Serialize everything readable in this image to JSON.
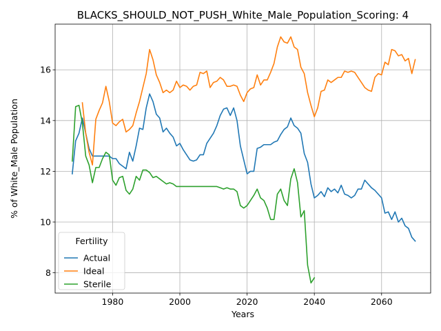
{
  "chart_data": {
    "type": "line",
    "title": "BLACKS_SHOULD_NOT_PUSH_White_Male_Population_Scoring: 4",
    "xlabel": "Years",
    "ylabel": "% of White_Male Population",
    "xlim": [
      1962.9,
      2074.6
    ],
    "ylim": [
      7.2,
      17.8
    ],
    "xticks": [
      1980,
      2000,
      2020,
      2040,
      2060
    ],
    "yticks": [
      8,
      10,
      12,
      14,
      16
    ],
    "grid": true,
    "legend": {
      "title": "Fertility",
      "position": "lower-left"
    },
    "colors": {
      "Actual": "#1f77b4",
      "Ideal": "#ff7f0e",
      "Sterile": "#2ca02c"
    },
    "series": [
      {
        "name": "Actual",
        "x": [
          1968,
          1969,
          1970,
          1971,
          1972,
          1973,
          1974,
          1975,
          1976,
          1977,
          1978,
          1979,
          1980,
          1981,
          1982,
          1983,
          1984,
          1985,
          1986,
          1987,
          1988,
          1989,
          1990,
          1991,
          1992,
          1993,
          1994,
          1995,
          1996,
          1997,
          1998,
          1999,
          2000,
          2001,
          2002,
          2003,
          2004,
          2005,
          2006,
          2007,
          2008,
          2009,
          2010,
          2011,
          2012,
          2013,
          2014,
          2015,
          2016,
          2017,
          2018,
          2019,
          2020,
          2021,
          2022,
          2023,
          2024,
          2025,
          2026,
          2027,
          2028,
          2029,
          2030,
          2031,
          2032,
          2033,
          2034,
          2035,
          2036,
          2037,
          2038,
          2039,
          2040,
          2041,
          2042,
          2043,
          2044,
          2045,
          2046,
          2047,
          2048,
          2049,
          2050,
          2051,
          2052,
          2053,
          2054,
          2055,
          2056,
          2057,
          2058,
          2059,
          2060,
          2061,
          2062,
          2063,
          2064,
          2065,
          2066,
          2067,
          2068,
          2069,
          2070
        ],
        "y": [
          11.9,
          13.2,
          13.5,
          14.1,
          13.5,
          12.9,
          12.6,
          12.6,
          12.6,
          12.6,
          12.6,
          12.6,
          12.5,
          12.5,
          12.3,
          12.2,
          12.1,
          12.75,
          12.4,
          13.0,
          13.7,
          13.65,
          14.5,
          15.05,
          14.75,
          14.25,
          14.1,
          13.55,
          13.7,
          13.5,
          13.35,
          13.0,
          13.1,
          12.85,
          12.65,
          12.45,
          12.4,
          12.45,
          12.65,
          12.65,
          13.1,
          13.3,
          13.5,
          13.8,
          14.2,
          14.45,
          14.5,
          14.2,
          14.5,
          14.0,
          13.0,
          12.45,
          11.9,
          12.0,
          12.0,
          12.9,
          12.95,
          13.05,
          13.05,
          13.05,
          13.15,
          13.2,
          13.45,
          13.65,
          13.75,
          14.1,
          13.8,
          13.7,
          13.5,
          12.7,
          12.35,
          11.5,
          10.95,
          11.05,
          11.2,
          11.0,
          11.35,
          11.2,
          11.3,
          11.15,
          11.45,
          11.1,
          11.05,
          10.95,
          11.05,
          11.3,
          11.3,
          11.65,
          11.5,
          11.35,
          11.25,
          11.1,
          10.95,
          10.35,
          10.4,
          10.1,
          10.4,
          10.0,
          10.15,
          9.85,
          9.75,
          9.4,
          9.25
        ]
      },
      {
        "name": "Ideal",
        "x": [
          1971,
          1972,
          1973,
          1974,
          1975,
          1976,
          1977,
          1978,
          1979,
          1980,
          1981,
          1982,
          1983,
          1984,
          1985,
          1986,
          1987,
          1988,
          1989,
          1990,
          1991,
          1992,
          1993,
          1994,
          1995,
          1996,
          1997,
          1998,
          1999,
          2000,
          2001,
          2002,
          2003,
          2004,
          2005,
          2006,
          2007,
          2008,
          2009,
          2010,
          2011,
          2012,
          2013,
          2014,
          2015,
          2016,
          2017,
          2018,
          2019,
          2020,
          2021,
          2022,
          2023,
          2024,
          2025,
          2026,
          2027,
          2028,
          2029,
          2030,
          2031,
          2032,
          2033,
          2034,
          2035,
          2036,
          2037,
          2038,
          2039,
          2040,
          2041,
          2042,
          2043,
          2044,
          2045,
          2046,
          2047,
          2048,
          2049,
          2050,
          2051,
          2052,
          2053,
          2054,
          2055,
          2056,
          2057,
          2058,
          2059,
          2060,
          2061,
          2062,
          2063,
          2064,
          2065,
          2066,
          2067,
          2068,
          2069,
          2070
        ],
        "y": [
          14.7,
          13.5,
          12.75,
          12.25,
          14.05,
          14.4,
          14.7,
          15.35,
          14.75,
          13.9,
          13.8,
          13.95,
          14.05,
          13.55,
          13.65,
          13.8,
          14.3,
          14.75,
          15.3,
          15.85,
          16.8,
          16.4,
          15.8,
          15.5,
          15.1,
          15.2,
          15.1,
          15.2,
          15.55,
          15.3,
          15.4,
          15.35,
          15.2,
          15.35,
          15.4,
          15.9,
          15.85,
          15.95,
          15.3,
          15.5,
          15.55,
          15.7,
          15.6,
          15.35,
          15.35,
          15.4,
          15.35,
          15.0,
          14.75,
          15.1,
          15.25,
          15.3,
          15.8,
          15.4,
          15.6,
          15.6,
          15.9,
          16.25,
          16.9,
          17.3,
          17.1,
          17.05,
          17.3,
          16.9,
          16.8,
          16.1,
          15.85,
          15.1,
          14.6,
          14.15,
          14.5,
          15.15,
          15.2,
          15.6,
          15.5,
          15.6,
          15.7,
          15.7,
          15.95,
          15.9,
          15.95,
          15.9,
          15.7,
          15.5,
          15.3,
          15.2,
          15.15,
          15.7,
          15.85,
          15.8,
          16.3,
          16.2,
          16.8,
          16.75,
          16.55,
          16.6,
          16.35,
          16.45,
          15.85,
          16.4
        ]
      },
      {
        "name": "Sterile",
        "x": [
          1968,
          1969,
          1970,
          1971,
          1972,
          1973,
          1974,
          1975,
          1976,
          1977,
          1978,
          1979,
          1980,
          1981,
          1982,
          1983,
          1984,
          1985,
          1986,
          1987,
          1988,
          1989,
          1990,
          1991,
          1992,
          1993,
          1994,
          1995,
          1996,
          1997,
          1998,
          1999,
          2000,
          2001,
          2002,
          2003,
          2004,
          2005,
          2006,
          2007,
          2008,
          2009,
          2010,
          2011,
          2012,
          2013,
          2014,
          2015,
          2016,
          2017,
          2018,
          2019,
          2020,
          2021,
          2022,
          2023,
          2024,
          2025,
          2026,
          2027,
          2028,
          2029,
          2030,
          2031,
          2032,
          2033,
          2034,
          2035,
          2036,
          2037,
          2038,
          2039,
          2040
        ],
        "y": [
          12.4,
          14.55,
          14.6,
          13.9,
          12.6,
          12.25,
          11.55,
          12.15,
          12.15,
          12.5,
          12.75,
          12.65,
          11.65,
          11.45,
          11.75,
          11.8,
          11.25,
          11.1,
          11.3,
          11.8,
          11.65,
          12.05,
          12.05,
          11.95,
          11.75,
          11.8,
          11.7,
          11.6,
          11.5,
          11.55,
          11.5,
          11.4,
          11.4,
          11.4,
          11.4,
          11.4,
          11.4,
          11.4,
          11.4,
          11.4,
          11.4,
          11.4,
          11.4,
          11.4,
          11.35,
          11.3,
          11.35,
          11.3,
          11.3,
          11.2,
          10.65,
          10.55,
          10.65,
          10.85,
          11.05,
          11.3,
          10.95,
          10.85,
          10.55,
          10.1,
          10.1,
          11.1,
          11.3,
          10.85,
          10.65,
          11.7,
          12.1,
          11.55,
          10.2,
          10.45,
          8.3,
          7.6,
          7.8
        ]
      }
    ]
  }
}
